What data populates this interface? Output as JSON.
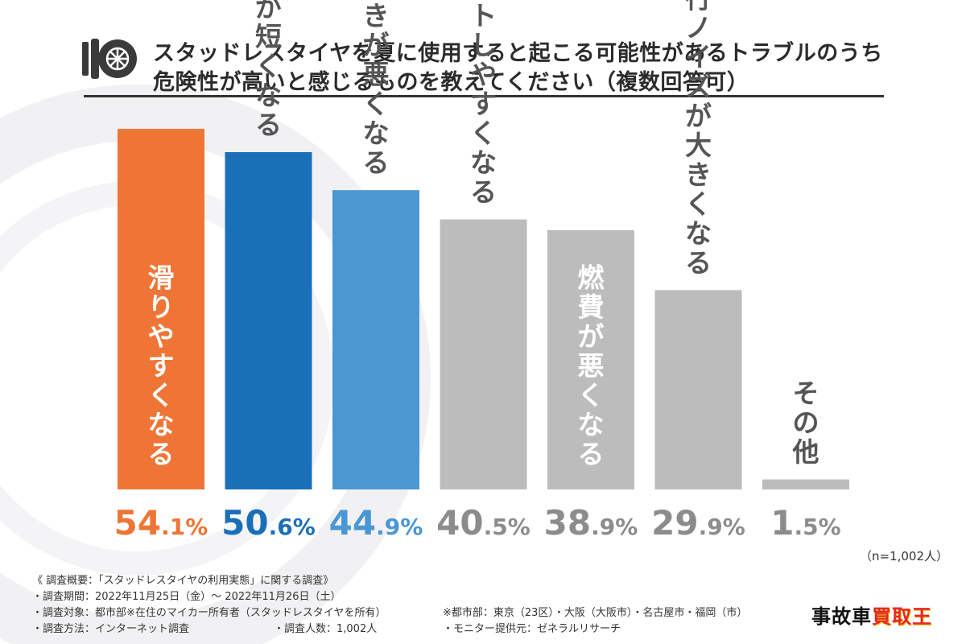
{
  "title": {
    "line1": "スタッドレスタイヤを夏に使用すると起こる可能性があるトラブルのうち",
    "line2": "危険性が高いと感じるものを教えてください（複数回答可）"
  },
  "chart_data": {
    "type": "bar",
    "categories": [
      "滑りやすくなる",
      "タイヤの寿命が短くなる",
      "ブレーキの利きが悪くなる",
      "バーストしやすくなる",
      "燃費が悪くなる",
      "走行ノイズが大きくなる",
      "その他"
    ],
    "values": [
      54.1,
      50.6,
      44.9,
      40.5,
      38.9,
      29.9,
      1.5
    ],
    "value_labels": [
      {
        "int": "54",
        "dec": ".1%"
      },
      {
        "int": "50",
        "dec": ".6%"
      },
      {
        "int": "44",
        "dec": ".9%"
      },
      {
        "int": "40",
        "dec": ".5%"
      },
      {
        "int": "38",
        "dec": ".9%"
      },
      {
        "int": "29",
        "dec": ".9%"
      },
      {
        "int": "1",
        "dec": ".5%"
      }
    ],
    "colors": [
      "#ef7536",
      "#1a6fb8",
      "#4a97d3",
      "#bcbcbc",
      "#bcbcbc",
      "#bcbcbc",
      "#bcbcbc"
    ],
    "label_colors": [
      "#ef7536",
      "#1a6fb8",
      "#4a97d3",
      "#8c8c8c",
      "#8c8c8c",
      "#8c8c8c",
      "#8c8c8c"
    ],
    "ylim": [
      0,
      55
    ],
    "grid": false,
    "legend": "none"
  },
  "sample_note": "（n=1,002人）",
  "survey": {
    "heading": "《 調査概要：「スタッドレスタイヤの利用実態」に関する調査》",
    "period": "・調査期間：2022年11月25日（金）～ 2022年11月26日（土）",
    "target": "・調査対象：都市部※在住のマイカー所有者（スタッドレスタイヤを所有）",
    "cities": "※都市部：東京（23区）・大阪（大阪市）・名古屋市・福岡（市）",
    "method": "・調査方法：インターネット調査",
    "count": "・調査人数：1,002人",
    "provider": "・モニター提供元：ゼネラルリサーチ"
  },
  "logo": {
    "main": "事故車",
    "accent": "買取王"
  },
  "icons": {
    "title_icon": "tire-icon"
  }
}
